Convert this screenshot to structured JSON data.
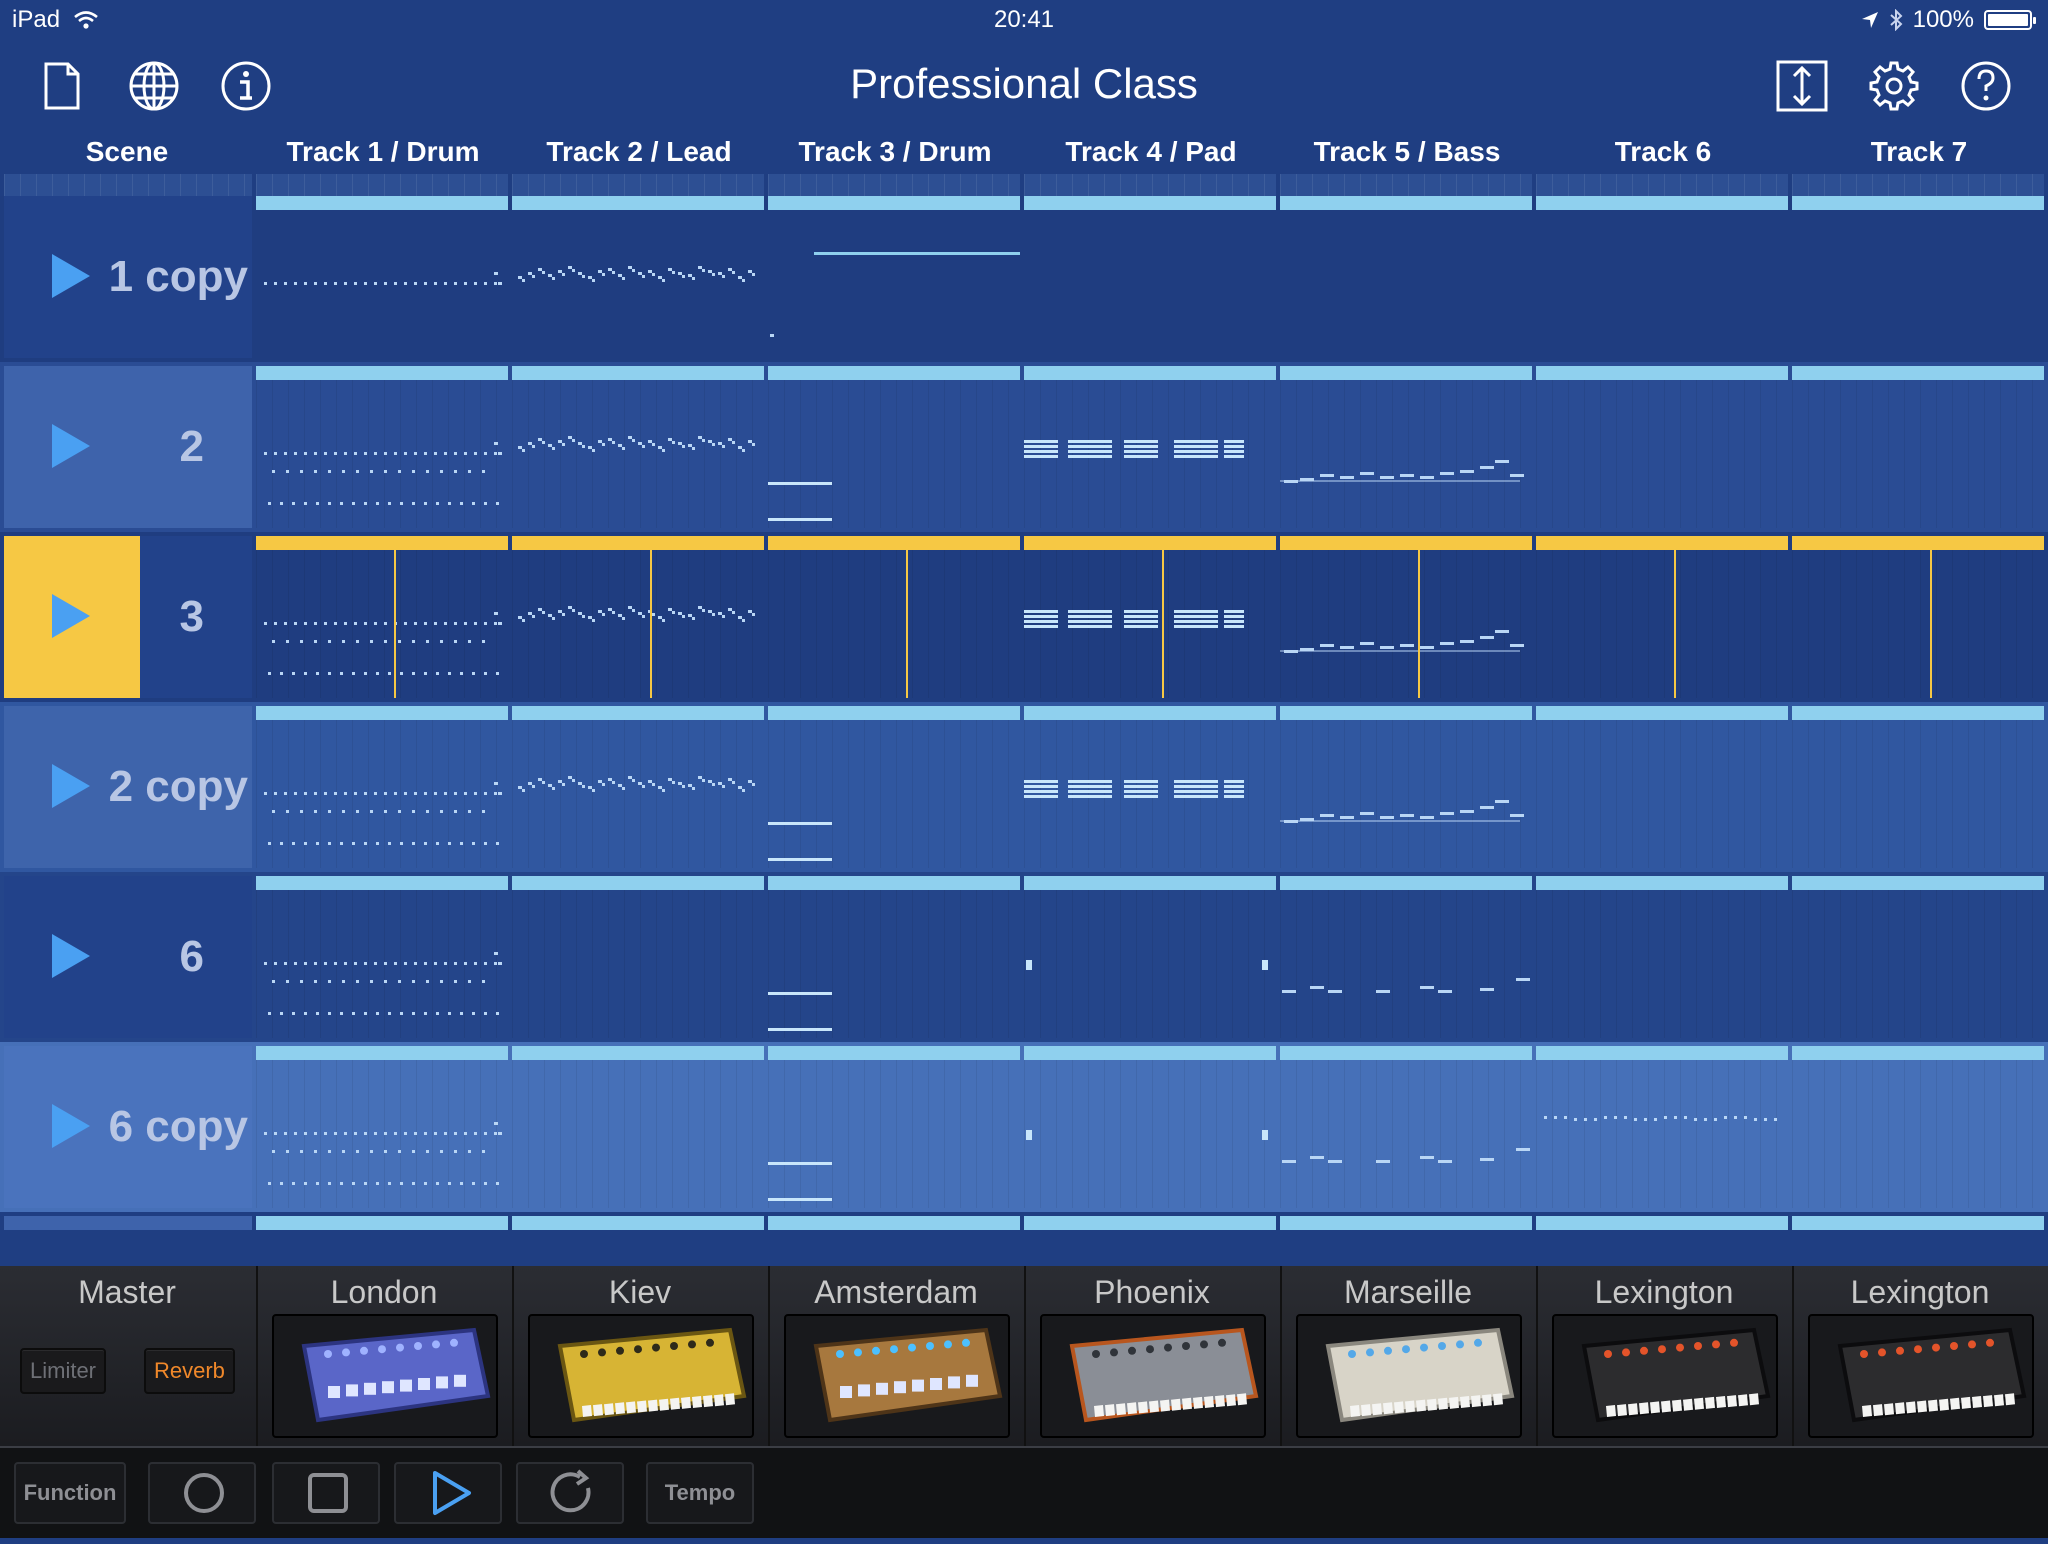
{
  "status_bar": {
    "device": "iPad",
    "time": "20:41",
    "battery": "100%"
  },
  "nav": {
    "title": "Professional Class"
  },
  "columns": {
    "scene": "Scene",
    "tracks": [
      "Track 1 / Drum",
      "Track 2 / Lead",
      "Track 3 / Drum",
      "Track 4 / Pad",
      "Track 5 / Bass",
      "Track 6",
      "Track 7"
    ]
  },
  "scenes": [
    {
      "name": "1 copy",
      "active": false
    },
    {
      "name": "2",
      "active": false
    },
    {
      "name": "3",
      "active": true
    },
    {
      "name": "2 copy",
      "active": false
    },
    {
      "name": "6",
      "active": false
    },
    {
      "name": "6 copy",
      "active": false
    }
  ],
  "colors": {
    "accent": "#f6c844",
    "clipbar": "#8fd0ee",
    "play": "#4aa0f2",
    "background": "#1f3e82",
    "reverb": "#f0882a"
  },
  "master": {
    "label": "Master",
    "limiter": "Limiter",
    "reverb": "Reverb"
  },
  "instruments": [
    "London",
    "Kiev",
    "Amsterdam",
    "Phoenix",
    "Marseille",
    "Lexington",
    "Lexington"
  ],
  "transport": {
    "function": "Function",
    "tempo": "Tempo"
  }
}
